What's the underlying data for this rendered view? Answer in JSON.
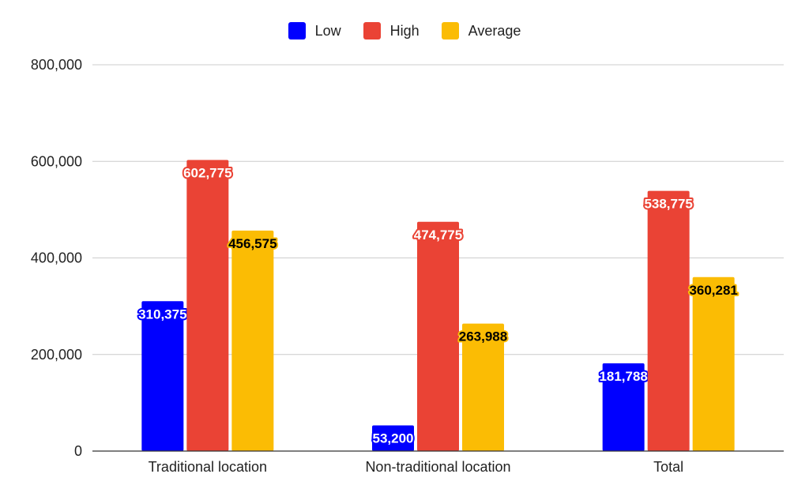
{
  "chart_data": {
    "type": "bar",
    "categories": [
      "Traditional location",
      "Non-traditional location",
      "Total"
    ],
    "series": [
      {
        "name": "Low",
        "color": "#0000ff",
        "values": [
          310375,
          53200,
          181788
        ],
        "labels": [
          "310,375",
          "53,200",
          "181,788"
        ]
      },
      {
        "name": "High",
        "color": "#ea4335",
        "values": [
          602775,
          474775,
          538775
        ],
        "labels": [
          "602,775",
          "474,775",
          "538,775"
        ]
      },
      {
        "name": "Average",
        "color": "#fbbc04",
        "values": [
          456575,
          263988,
          360281
        ],
        "labels": [
          "456,575",
          "263,988",
          "360,281"
        ]
      }
    ],
    "yticks": [
      0,
      200000,
      400000,
      600000,
      800000
    ],
    "ytick_labels": [
      "0",
      "200,000",
      "400,000",
      "600,000",
      "800,000"
    ],
    "ylim": [
      0,
      800000
    ],
    "grid": true,
    "legend_position": "top-center"
  }
}
